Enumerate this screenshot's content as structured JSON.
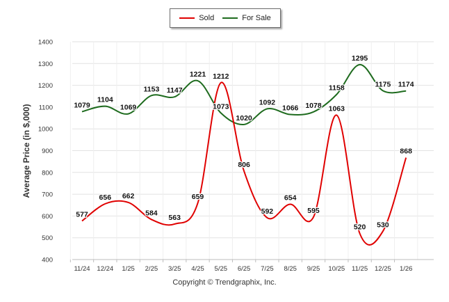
{
  "legend": {
    "sold_label": "Sold",
    "forsale_label": "For Sale"
  },
  "footer": {
    "copyright": "Copyright © Trendgraphix, Inc."
  },
  "chart_data": {
    "type": "line",
    "title": "",
    "xlabel": "",
    "ylabel": "Average Price (in $,000)",
    "ylim": [
      400,
      1400
    ],
    "yticks": [
      400,
      500,
      600,
      700,
      800,
      900,
      1000,
      1100,
      1200,
      1300,
      1400
    ],
    "categories": [
      "11/24",
      "12/24",
      "1/25",
      "2/25",
      "3/25",
      "4/25",
      "5/25",
      "6/25",
      "7/25",
      "8/25",
      "9/25",
      "10/25",
      "11/25",
      "12/25",
      "1/26"
    ],
    "series": [
      {
        "name": "Sold",
        "color": "#e00000",
        "values": [
          577,
          656,
          662,
          584,
          563,
          659,
          1212,
          806,
          592,
          654,
          595,
          1063,
          520,
          530,
          868
        ]
      },
      {
        "name": "For Sale",
        "color": "#1e6b1e",
        "values": [
          1079,
          1104,
          1069,
          1153,
          1147,
          1221,
          1073,
          1020,
          1092,
          1066,
          1078,
          1158,
          1295,
          1175,
          1174
        ]
      }
    ],
    "grid": true,
    "legend_position": "top-center"
  }
}
